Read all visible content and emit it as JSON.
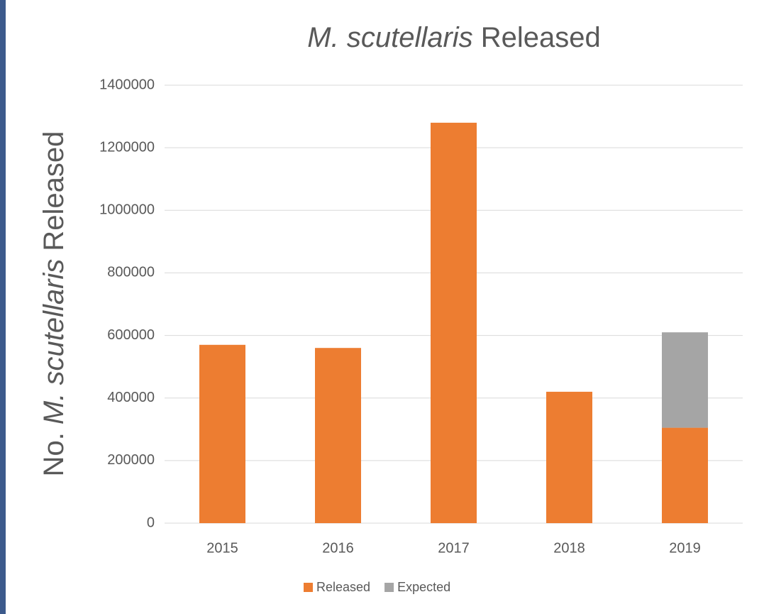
{
  "chart_data": {
    "type": "stacked_bar",
    "title": {
      "italic": "M. scutellaris",
      "text": "Released"
    },
    "ylabel": {
      "before": "No.",
      "italic": "M. scutellaris",
      "after": "Released"
    },
    "categories": [
      "2015",
      "2016",
      "2017",
      "2018",
      "2019"
    ],
    "series": [
      {
        "name": "Released",
        "color": "#ed7d31",
        "values": [
          570000,
          560000,
          1280000,
          420000,
          305000
        ]
      },
      {
        "name": "Expected",
        "color": "#a5a5a5",
        "values": [
          null,
          null,
          null,
          null,
          305000
        ]
      }
    ],
    "ylim": [
      0,
      1400000
    ],
    "yticks": [
      0,
      200000,
      400000,
      600000,
      800000,
      1000000,
      1200000,
      1400000
    ],
    "grid": true,
    "legend": "bottom"
  }
}
